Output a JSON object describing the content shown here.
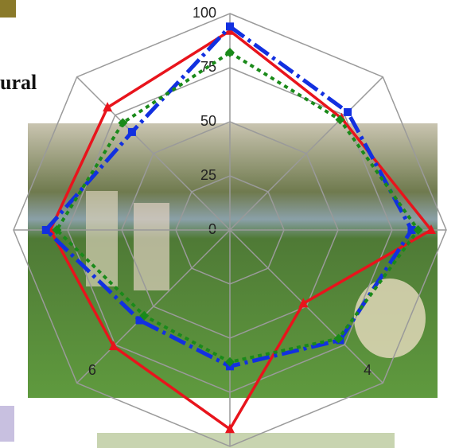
{
  "chart_data": {
    "type": "radar",
    "annotation": "ural",
    "categories": [
      null,
      null,
      null,
      "4",
      null,
      "6",
      null,
      null
    ],
    "rlim": [
      0,
      100
    ],
    "rticks": [
      0,
      25,
      50,
      75,
      100
    ],
    "grid": true,
    "series": [
      {
        "color": "#e8141c",
        "dash": "solid",
        "marker": "triangle",
        "values": [
          92,
          73,
          93,
          48,
          92,
          76,
          83,
          80
        ]
      },
      {
        "color": "#1230e0",
        "dash": "dashdot",
        "marker": "square",
        "values": [
          94,
          77,
          84,
          72,
          63,
          59,
          85,
          64
        ]
      },
      {
        "color": "#1a8a1a",
        "dash": "dotted",
        "marker": "diamond",
        "values": [
          82,
          72,
          87,
          71,
          61,
          56,
          80,
          70
        ]
      }
    ]
  }
}
